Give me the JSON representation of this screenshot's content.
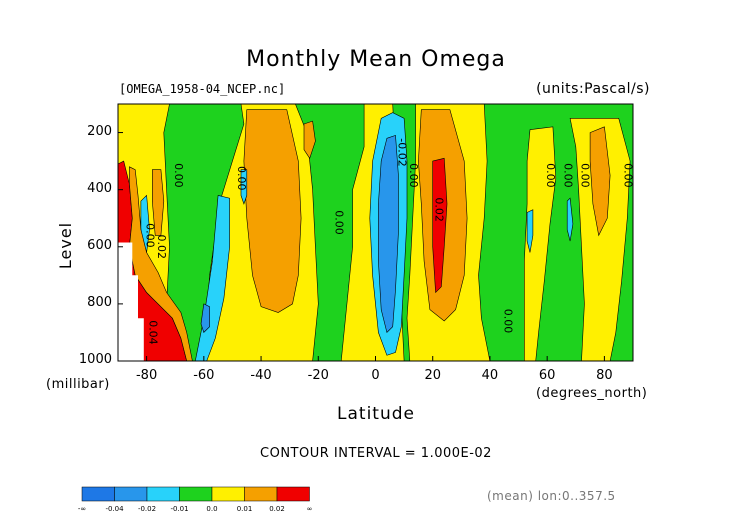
{
  "header": {
    "title": "Monthly Mean Omega",
    "file": "[OMEGA_1958-04_NCEP.nc]",
    "units": "(units:Pascal/s)"
  },
  "axes": {
    "ylabel": "Level",
    "xlabel": "Latitude",
    "yunit": "(millibar)",
    "xunit": "(degrees_north)"
  },
  "footer": {
    "contour_interval": "CONTOUR INTERVAL = 1.000E-02",
    "mean_note": "(mean) lon:0..357.5"
  },
  "colors": {
    "below_-0.04": "#1e78e6",
    "-0.04_-0.02": "#2896eb",
    "-0.02_-0.01": "#28d2fa",
    "-0.01_0.0": "#1ed21e",
    "0.0_0.01": "#fff000",
    "0.01_0.02": "#f5a000",
    "above_0.02": "#f00000"
  },
  "chart_data": {
    "type": "heatmap",
    "title": "Monthly Mean Omega",
    "xlabel": "Latitude",
    "ylabel": "Level",
    "xlim": [
      -90,
      90
    ],
    "ylim": [
      1000,
      100
    ],
    "x_ticks": [
      "-80",
      "-60",
      "-40",
      "-20",
      "0",
      "20",
      "40",
      "60",
      "80"
    ],
    "x_tick_values": [
      -80,
      -60,
      -40,
      -20,
      0,
      20,
      40,
      60,
      80
    ],
    "y_ticks": [
      "200",
      "400",
      "600",
      "800",
      "1000"
    ],
    "y_tick_values": [
      200,
      400,
      600,
      800,
      1000
    ],
    "colorbar": {
      "labels": [
        "-∞",
        "-0.04",
        "-0.02",
        "-0.01",
        "0.0",
        "0.01",
        "0.02",
        "∞"
      ],
      "bins": [
        "below_-0.04",
        "-0.04_-0.02",
        "-0.02_-0.01",
        "-0.01_0.0",
        "0.0_0.01",
        "0.01_0.02",
        "above_0.02"
      ]
    },
    "contour_labels": [
      {
        "text": "0.00",
        "lat": -70,
        "lev": 350
      },
      {
        "text": "0.00",
        "lat": -48,
        "lev": 360
      },
      {
        "text": "0.00",
        "lat": -14,
        "lev": 515
      },
      {
        "text": "-0.02",
        "lat": 8,
        "lev": 270
      },
      {
        "text": "0.00",
        "lat": 12,
        "lev": 350
      },
      {
        "text": "0.02",
        "lat": 21,
        "lev": 470
      },
      {
        "text": "0.00",
        "lat": 45,
        "lev": 860
      },
      {
        "text": "0.00",
        "lat": 60,
        "lev": 350
      },
      {
        "text": "0.00",
        "lat": 66,
        "lev": 350
      },
      {
        "text": "0.00",
        "lat": 72,
        "lev": 350
      },
      {
        "text": "0.00",
        "lat": 87,
        "lev": 350
      },
      {
        "text": "0.00",
        "lat": -80,
        "lev": 560
      },
      {
        "text": "0.02",
        "lat": -76,
        "lev": 600
      },
      {
        "text": "0.04",
        "lat": -79,
        "lev": 900
      }
    ],
    "regions": [
      {
        "bin": "0.0_0.01",
        "pts": [
          [
            -90,
            100
          ],
          [
            90,
            100
          ],
          [
            90,
            1000
          ],
          [
            -90,
            1000
          ]
        ]
      },
      {
        "bin": "-0.01_0.0",
        "pts": [
          [
            -72,
            100
          ],
          [
            -47,
            100
          ],
          [
            -46,
            170
          ],
          [
            -50,
            300
          ],
          [
            -54,
            430
          ],
          [
            -56,
            560
          ],
          [
            -58,
            700
          ],
          [
            -59,
            860
          ],
          [
            -60,
            1000
          ],
          [
            -74,
            1000
          ],
          [
            -73,
            800
          ],
          [
            -72,
            600
          ],
          [
            -73,
            400
          ],
          [
            -74,
            200
          ]
        ]
      },
      {
        "bin": "-0.01_0.0",
        "pts": [
          [
            -28,
            100
          ],
          [
            -4,
            100
          ],
          [
            -4,
            250
          ],
          [
            -8,
            400
          ],
          [
            -8,
            600
          ],
          [
            -10,
            800
          ],
          [
            -12,
            1000
          ],
          [
            -22,
            1000
          ],
          [
            -20,
            800
          ],
          [
            -21,
            600
          ],
          [
            -22,
            400
          ],
          [
            -24,
            200
          ]
        ]
      },
      {
        "bin": "-0.01_0.0",
        "pts": [
          [
            6,
            100
          ],
          [
            14,
            100
          ],
          [
            14,
            300
          ],
          [
            13,
            500
          ],
          [
            12,
            700
          ],
          [
            11,
            850
          ],
          [
            12,
            1000
          ],
          [
            10,
            1000
          ],
          [
            9,
            800
          ],
          [
            8,
            500
          ],
          [
            7,
            300
          ]
        ]
      },
      {
        "bin": "-0.01_0.0",
        "pts": [
          [
            38,
            100
          ],
          [
            90,
            100
          ],
          [
            90,
            1000
          ],
          [
            40,
            1000
          ],
          [
            37,
            850
          ],
          [
            36,
            700
          ],
          [
            38,
            500
          ],
          [
            39,
            300
          ]
        ]
      },
      {
        "bin": "0.0_0.01",
        "pts": [
          [
            54,
            190
          ],
          [
            62,
            180
          ],
          [
            63,
            360
          ],
          [
            61,
            520
          ],
          [
            59,
            720
          ],
          [
            57,
            900
          ],
          [
            56,
            1000
          ],
          [
            52,
            1000
          ],
          [
            52,
            850
          ],
          [
            52,
            650
          ],
          [
            53,
            450
          ],
          [
            53,
            300
          ]
        ]
      },
      {
        "bin": "0.0_0.01",
        "pts": [
          [
            68,
            150
          ],
          [
            85,
            150
          ],
          [
            89,
            300
          ],
          [
            88,
            500
          ],
          [
            86,
            720
          ],
          [
            84,
            900
          ],
          [
            82,
            1000
          ],
          [
            72,
            1000
          ],
          [
            73,
            800
          ],
          [
            72,
            600
          ],
          [
            71,
            400
          ],
          [
            70,
            250
          ]
        ]
      },
      {
        "bin": "0.01_0.02",
        "pts": [
          [
            75,
            200
          ],
          [
            80,
            180
          ],
          [
            82,
            350
          ],
          [
            81,
            500
          ],
          [
            78,
            560
          ],
          [
            76,
            450
          ],
          [
            75,
            300
          ]
        ]
      },
      {
        "bin": "0.01_0.02",
        "pts": [
          [
            -25,
            170
          ],
          [
            -22,
            160
          ],
          [
            -21,
            230
          ],
          [
            -23,
            290
          ],
          [
            -25,
            260
          ]
        ]
      },
      {
        "bin": "0.01_0.02",
        "pts": [
          [
            -45,
            120
          ],
          [
            -31,
            120
          ],
          [
            -27,
            300
          ],
          [
            -26,
            500
          ],
          [
            -27,
            700
          ],
          [
            -29,
            800
          ],
          [
            -34,
            830
          ],
          [
            -40,
            810
          ],
          [
            -43,
            700
          ],
          [
            -45,
            500
          ],
          [
            -46,
            300
          ]
        ]
      },
      {
        "bin": "0.01_0.02",
        "pts": [
          [
            16,
            120
          ],
          [
            26,
            120
          ],
          [
            31,
            300
          ],
          [
            32,
            500
          ],
          [
            31,
            700
          ],
          [
            28,
            820
          ],
          [
            24,
            860
          ],
          [
            19,
            820
          ],
          [
            17,
            650
          ],
          [
            16,
            450
          ],
          [
            15,
            300
          ]
        ]
      },
      {
        "bin": "above_0.02",
        "pts": [
          [
            20,
            300
          ],
          [
            24,
            290
          ],
          [
            25,
            450
          ],
          [
            24,
            600
          ],
          [
            23,
            740
          ],
          [
            21,
            760
          ],
          [
            20,
            600
          ],
          [
            20,
            450
          ]
        ]
      },
      {
        "bin": "-0.02_-0.01",
        "pts": [
          [
            6,
            130
          ],
          [
            10,
            150
          ],
          [
            11,
            300
          ],
          [
            11,
            500
          ],
          [
            10,
            700
          ],
          [
            9,
            880
          ],
          [
            7,
            970
          ],
          [
            4,
            980
          ],
          [
            1,
            900
          ],
          [
            -1,
            700
          ],
          [
            -2,
            500
          ],
          [
            -1,
            300
          ],
          [
            2,
            150
          ]
        ]
      },
      {
        "bin": "-0.04_-0.02",
        "pts": [
          [
            4,
            220
          ],
          [
            7,
            210
          ],
          [
            8,
            350
          ],
          [
            8,
            550
          ],
          [
            7,
            750
          ],
          [
            6,
            880
          ],
          [
            4,
            900
          ],
          [
            2,
            820
          ],
          [
            1,
            650
          ],
          [
            1,
            450
          ],
          [
            2,
            300
          ]
        ]
      },
      {
        "bin": "-0.02_-0.01",
        "pts": [
          [
            -55,
            420
          ],
          [
            -51,
            430
          ],
          [
            -51,
            600
          ],
          [
            -53,
            780
          ],
          [
            -56,
            920
          ],
          [
            -59,
            1000
          ],
          [
            -63,
            1000
          ],
          [
            -60,
            850
          ],
          [
            -57,
            650
          ]
        ]
      },
      {
        "bin": "-0.02_-0.01",
        "pts": [
          [
            -47,
            330
          ],
          [
            -45,
            330
          ],
          [
            -45,
            420
          ],
          [
            -46,
            450
          ],
          [
            -47,
            420
          ]
        ]
      },
      {
        "bin": "-0.04_-0.02",
        "pts": [
          [
            -60,
            800
          ],
          [
            -58,
            810
          ],
          [
            -58,
            880
          ],
          [
            -60,
            900
          ],
          [
            -61,
            870
          ]
        ]
      },
      {
        "bin": "-0.02_-0.01",
        "pts": [
          [
            -82,
            440
          ],
          [
            -80,
            420
          ],
          [
            -79,
            540
          ],
          [
            -80,
            620
          ],
          [
            -82,
            560
          ]
        ]
      },
      {
        "bin": "-0.02_-0.01",
        "pts": [
          [
            53,
            480
          ],
          [
            55,
            470
          ],
          [
            55,
            560
          ],
          [
            54,
            620
          ],
          [
            53,
            580
          ]
        ]
      },
      {
        "bin": "-0.02_-0.01",
        "pts": [
          [
            67,
            440
          ],
          [
            68,
            430
          ],
          [
            69,
            520
          ],
          [
            68,
            580
          ],
          [
            67,
            540
          ]
        ]
      },
      {
        "bin": "above_0.02",
        "pts": [
          [
            -90,
            310
          ],
          [
            -88,
            300
          ],
          [
            -86,
            380
          ],
          [
            -85,
            500
          ],
          [
            -86,
            600
          ],
          [
            -84,
            700
          ],
          [
            -80,
            760
          ],
          [
            -76,
            800
          ],
          [
            -71,
            850
          ],
          [
            -68,
            920
          ],
          [
            -66,
            1000
          ],
          [
            -90,
            1000
          ]
        ]
      },
      {
        "bin": "0.01_0.02",
        "pts": [
          [
            -86,
            320
          ],
          [
            -84,
            330
          ],
          [
            -83,
            420
          ],
          [
            -82,
            540
          ],
          [
            -80,
            620
          ],
          [
            -76,
            690
          ],
          [
            -73,
            760
          ],
          [
            -68,
            830
          ],
          [
            -66,
            900
          ],
          [
            -64,
            1000
          ],
          [
            -66,
            1000
          ],
          [
            -68,
            920
          ],
          [
            -71,
            850
          ],
          [
            -76,
            800
          ],
          [
            -80,
            760
          ],
          [
            -84,
            700
          ],
          [
            -86,
            600
          ],
          [
            -85,
            500
          ],
          [
            -86,
            380
          ]
        ]
      },
      {
        "bin": "0.01_0.02",
        "pts": [
          [
            -78,
            330
          ],
          [
            -75,
            330
          ],
          [
            -74,
            440
          ],
          [
            -75,
            560
          ],
          [
            -77,
            560
          ],
          [
            -78,
            440
          ]
        ]
      },
      {
        "bin": "missing",
        "pts": [
          [
            -90,
            585
          ],
          [
            -85,
            585
          ],
          [
            -85,
            700
          ],
          [
            -83,
            700
          ],
          [
            -83,
            850
          ],
          [
            -81,
            850
          ],
          [
            -81,
            1000
          ],
          [
            -90,
            1000
          ]
        ]
      }
    ]
  }
}
